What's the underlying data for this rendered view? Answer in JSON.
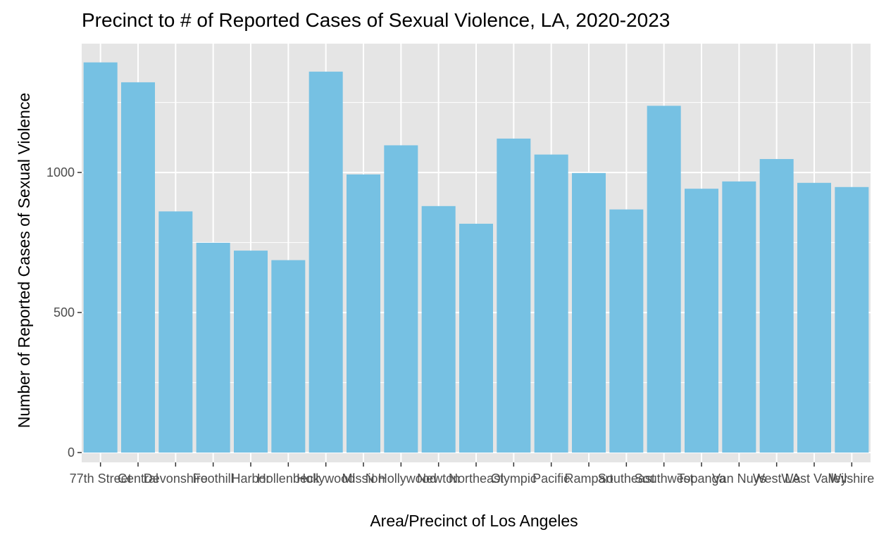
{
  "chart_data": {
    "type": "bar",
    "title": "Precinct to # of Reported Cases of Sexual Violence, LA, 2020-2023",
    "xlabel": "Area/Precinct of Los Angeles",
    "ylabel": "Number of Reported Cases of Sexual Violence",
    "categories": [
      "77th Street",
      "Central",
      "Devonshire",
      "Foothill",
      "Harbor",
      "Hollenbeck",
      "Hollywood",
      "Mission",
      "N Hollywood",
      "Newton",
      "Northeast",
      "Olympic",
      "Pacific",
      "Rampart",
      "Southeast",
      "Southwest",
      "Topanga",
      "Van Nuys",
      "West LA",
      "West Valley",
      "Wilshire"
    ],
    "values": [
      1393,
      1322,
      861,
      749,
      721,
      687,
      1360,
      993,
      1097,
      880,
      817,
      1121,
      1064,
      998,
      868,
      1238,
      942,
      968,
      1048,
      963,
      948
    ],
    "yticks": [
      0,
      500,
      1000
    ],
    "ylim": [
      -35,
      1460
    ],
    "grid": true,
    "bar_color": "#76c1e3",
    "panel_color": "#e5e5e5",
    "grid_color": "#ffffff"
  }
}
